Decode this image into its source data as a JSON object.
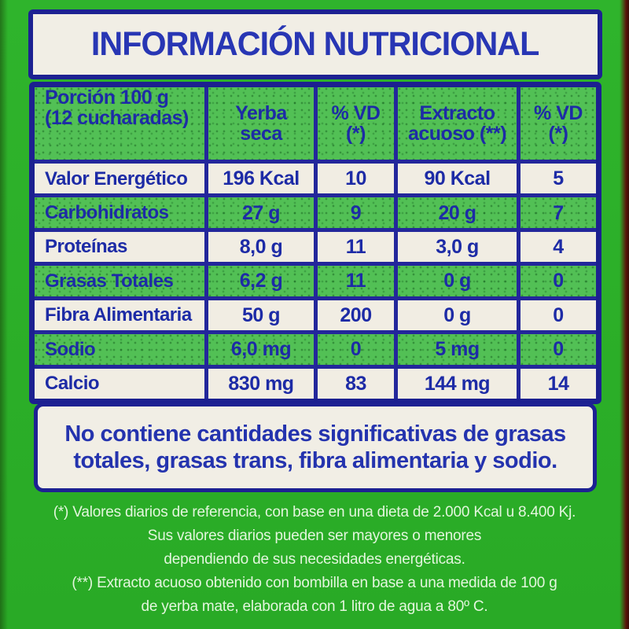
{
  "title": "INFORMACIÓN NUTRICIONAL",
  "table": {
    "header": {
      "porcion": [
        "Porción 100 g",
        "(12 cucharadas)"
      ],
      "yerba_seca": [
        "Yerba",
        "seca"
      ],
      "vd_yerba": [
        "% VD",
        "(*)"
      ],
      "extracto": [
        "Extracto",
        "acuoso (**)"
      ],
      "vd_extracto": [
        "% VD",
        "(*)"
      ]
    },
    "rows": [
      {
        "nutrient": "Valor Energético",
        "yerba_seca": "196 Kcal",
        "vd_yerba": "10",
        "extracto_acuoso": "90 Kcal",
        "vd_extracto": "5"
      },
      {
        "nutrient": "Carbohidratos",
        "yerba_seca": "27 g",
        "vd_yerba": "9",
        "extracto_acuoso": "20 g",
        "vd_extracto": "7"
      },
      {
        "nutrient": "Proteínas",
        "yerba_seca": "8,0 g",
        "vd_yerba": "11",
        "extracto_acuoso": "3,0 g",
        "vd_extracto": "4"
      },
      {
        "nutrient": "Grasas Totales",
        "yerba_seca": "6,2 g",
        "vd_yerba": "11",
        "extracto_acuoso": "0 g",
        "vd_extracto": "0"
      },
      {
        "nutrient": "Fibra Alimentaria",
        "yerba_seca": "50 g",
        "vd_yerba": "200",
        "extracto_acuoso": "0 g",
        "vd_extracto": "0"
      },
      {
        "nutrient": "Sodio",
        "yerba_seca": "6,0 mg",
        "vd_yerba": "0",
        "extracto_acuoso": "5 mg",
        "vd_extracto": "0"
      },
      {
        "nutrient": "Calcio",
        "yerba_seca": "830 mg",
        "vd_yerba": "83",
        "extracto_acuoso": "144 mg",
        "vd_extracto": "14"
      }
    ]
  },
  "note": {
    "line1": "No contiene cantidades significativas de grasas",
    "line2": "totales, grasas trans, fibra alimentaria y sodio."
  },
  "footnotes": [
    "(*) Valores diarios de referencia, con base en una dieta de 2.000 Kcal u 8.400 Kj.",
    "Sus valores diarios pueden ser mayores o menores",
    "dependiendo de sus necesidades energéticas.",
    "(**) Extracto acuoso obtenido con bombilla en base a una medida de 100 g",
    "de yerba mate, elaborada con 1 litro de agua a 80º C."
  ],
  "colors": {
    "package_green": "#2bae28",
    "cell_green": "#52c055",
    "cell_white": "#f1ede3",
    "grid_navy": "#1d2192",
    "text_blue": "#2433ae",
    "footnote_white": "#e3f6dd",
    "edge_red": "#5a130a"
  }
}
